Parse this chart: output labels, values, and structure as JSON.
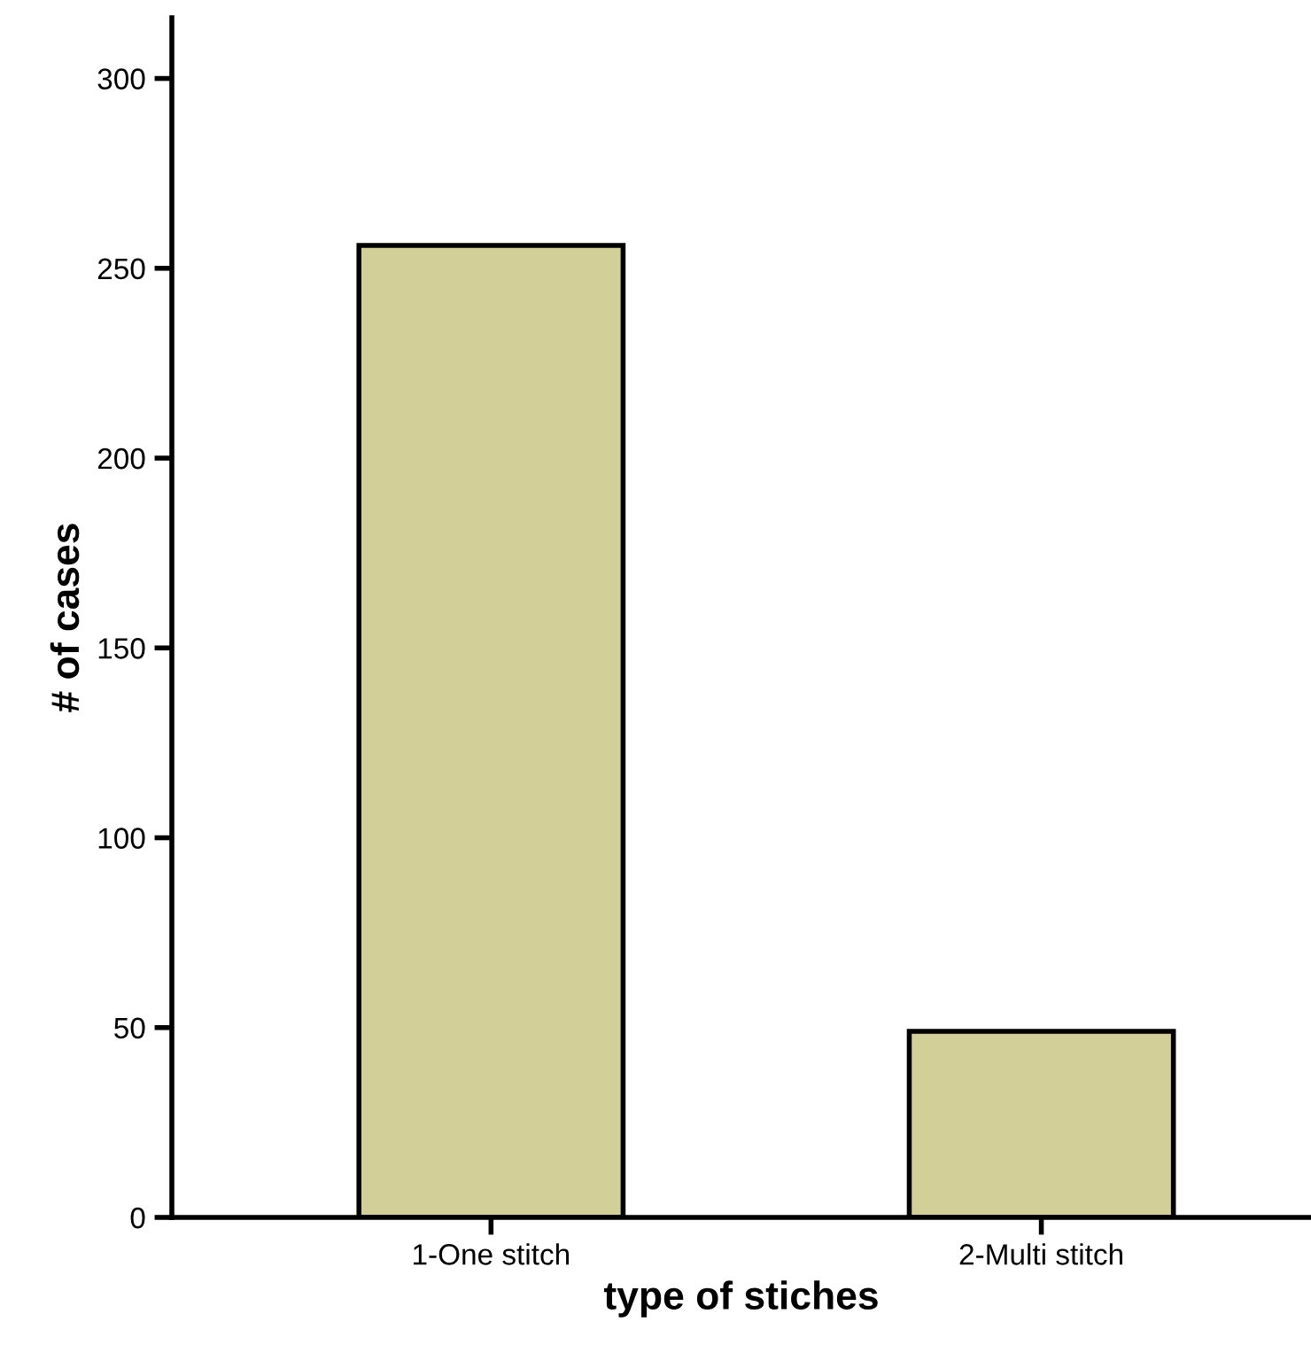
{
  "chart_data": {
    "type": "bar",
    "xlabel": "type of stiches",
    "ylabel": "# of cases",
    "categories": [
      "1-One stitch",
      "2-Multi stitch"
    ],
    "values": [
      256,
      49
    ],
    "color": "#d3cf98",
    "ylim": [
      0,
      316
    ],
    "yticks": [
      0,
      50,
      100,
      150,
      200,
      250,
      300
    ],
    "grid": false
  }
}
